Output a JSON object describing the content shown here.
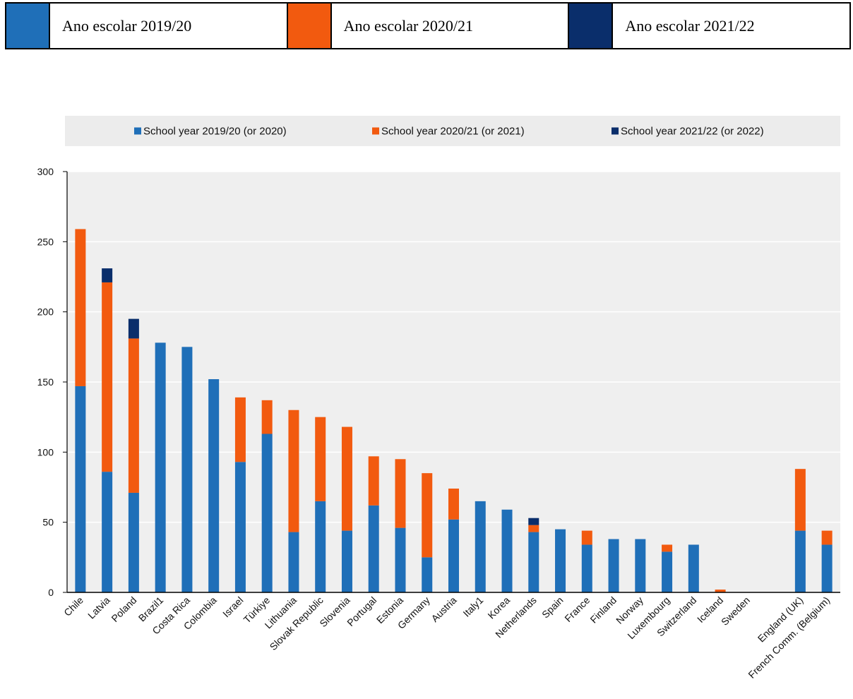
{
  "top_legend": {
    "items": [
      {
        "label": "Ano escolar 2019/20",
        "color": "#1f6fb8"
      },
      {
        "label": "Ano escolar 2020/21",
        "color": "#f25a0f"
      },
      {
        "label": "Ano escolar 2021/22",
        "color": "#0a2e6b"
      }
    ]
  },
  "chart_data": {
    "type": "bar",
    "stacked": true,
    "ylim": [
      0,
      300
    ],
    "yticks": [
      "0",
      "50",
      "100",
      "150",
      "200",
      "250",
      "300"
    ],
    "grid": true,
    "legend_position": "top",
    "categories": [
      "Chile",
      "Latvia",
      "Poland",
      "Brazil1",
      "Costa Rica",
      "Colombia",
      "Israel",
      "Türkiye",
      "Lithuania",
      "Slovak Republic",
      "Slovenia",
      "Portugal",
      "Estonia",
      "Germany",
      "Austria",
      "Italy1",
      "Korea",
      "Netherlands",
      "Spain",
      "France",
      "Finland",
      "Norway",
      "Luxembourg",
      "Switzerland",
      "Iceland",
      "Sweden",
      "",
      "England (UK)",
      "French Comm. (Belgium)"
    ],
    "series": [
      {
        "name": "School year 2019/20 (or 2020)",
        "color": "#1f6fb8",
        "values": [
          147,
          86,
          71,
          178,
          175,
          152,
          93,
          113,
          43,
          65,
          44,
          62,
          46,
          25,
          52,
          65,
          59,
          43,
          45,
          34,
          38,
          38,
          29,
          34,
          0,
          0,
          0,
          44,
          34
        ]
      },
      {
        "name": "School year 2020/21 (or 2021)",
        "color": "#f25a0f",
        "values": [
          112,
          135,
          110,
          0,
          0,
          0,
          46,
          24,
          87,
          60,
          74,
          35,
          49,
          60,
          22,
          0,
          0,
          5,
          0,
          10,
          0,
          0,
          5,
          0,
          2,
          0,
          0,
          44,
          10
        ]
      },
      {
        "name": "School year 2021/22 (or 2022)",
        "color": "#0a2e6b",
        "values": [
          0,
          10,
          14,
          0,
          0,
          0,
          0,
          0,
          0,
          0,
          0,
          0,
          0,
          0,
          0,
          0,
          0,
          5,
          0,
          0,
          0,
          0,
          0,
          0,
          0,
          0,
          0,
          0,
          0
        ]
      }
    ]
  }
}
